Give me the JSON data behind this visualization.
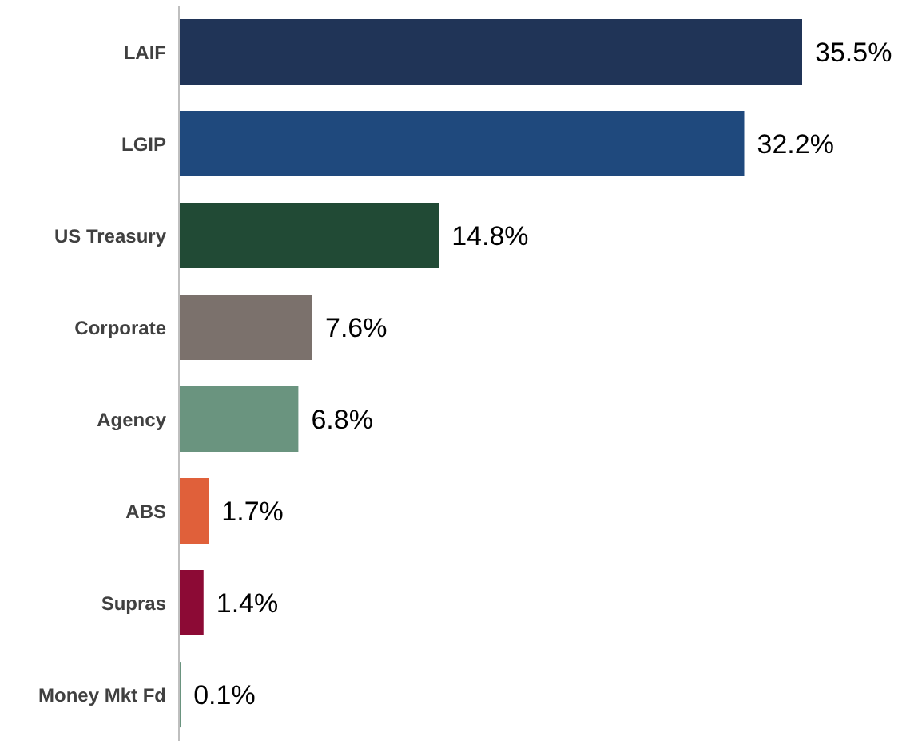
{
  "chart_data": {
    "type": "bar",
    "orientation": "horizontal",
    "categories": [
      "LAIF",
      "LGIP",
      "US Treasury",
      "Corporate",
      "Agency",
      "ABS",
      "Supras",
      "Money Mkt Fd"
    ],
    "values": [
      35.5,
      32.2,
      14.8,
      7.6,
      6.8,
      1.7,
      1.4,
      0.1
    ],
    "colors": [
      "#203457",
      "#1f497d",
      "#214a35",
      "#7b716c",
      "#6a947f",
      "#e0603a",
      "#8c0a35",
      "#6a947f"
    ],
    "value_labels": [
      "35.5%",
      "32.2%",
      "14.8%",
      "7.6%",
      "6.8%",
      "1.7%",
      "1.4%",
      "0.1%"
    ]
  }
}
